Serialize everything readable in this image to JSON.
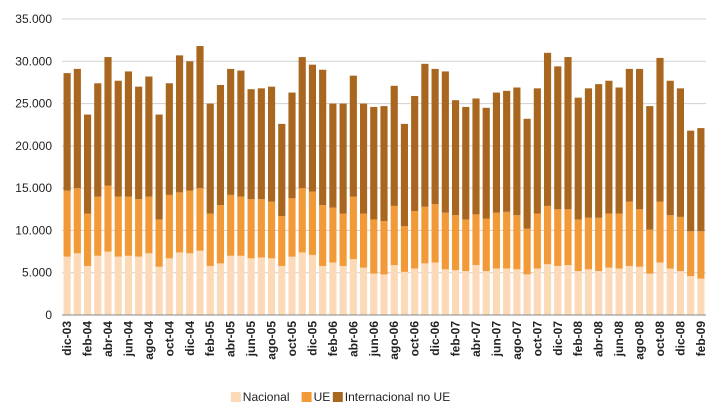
{
  "chart_data": {
    "type": "stacked_bar",
    "categories": [
      "dic-03",
      null,
      "feb-04",
      null,
      "abr-04",
      null,
      "jun-04",
      null,
      "ago-04",
      null,
      "oct-04",
      null,
      "dic-04",
      null,
      "feb-05",
      null,
      "abr-05",
      null,
      "jun-05",
      null,
      "ago-05",
      null,
      "oct-05",
      null,
      "dic-05",
      null,
      "feb-06",
      null,
      "abr-06",
      null,
      "jun-06",
      null,
      "ago-06",
      null,
      "oct-06",
      null,
      "dic-06",
      null,
      "feb-07",
      null,
      "abr-07",
      null,
      "jun-07",
      null,
      "ago-07",
      null,
      "oct-07",
      null,
      "dic-07",
      null,
      "feb-08",
      null,
      "abr-08",
      null,
      "jun-08",
      null,
      "ago-08",
      null,
      "oct-08",
      null,
      "dic-08",
      null,
      "feb-09"
    ],
    "series": [
      {
        "name": "Nacional",
        "color": "#fcdab8",
        "values": [
          6900,
          7300,
          5800,
          7000,
          7500,
          6900,
          7000,
          6900,
          7300,
          5700,
          6700,
          7400,
          7300,
          7600,
          5800,
          6100,
          7000,
          7000,
          6700,
          6800,
          6700,
          5800,
          6900,
          7400,
          7100,
          5800,
          6200,
          5800,
          6600,
          5600,
          4900,
          4800,
          5900,
          5100,
          5500,
          6100,
          6200,
          5400,
          5300,
          5200,
          5900,
          5200,
          5500,
          5500,
          5400,
          4800,
          5500,
          6000,
          5800,
          5900,
          5200,
          5400,
          5200,
          5600,
          5500,
          5800,
          5700,
          4900,
          6200,
          5500,
          5200,
          4600,
          4300
        ]
      },
      {
        "name": "UE",
        "color": "#f29a38",
        "values": [
          7800,
          7700,
          6200,
          7000,
          7800,
          7100,
          7000,
          6800,
          6700,
          5600,
          7500,
          7100,
          7400,
          7400,
          6200,
          6900,
          7200,
          7000,
          7000,
          6900,
          6700,
          5900,
          6900,
          7600,
          7500,
          7200,
          6500,
          6200,
          7400,
          6400,
          6400,
          6300,
          7000,
          5400,
          6800,
          6700,
          6900,
          6700,
          6500,
          6100,
          6000,
          6200,
          6600,
          6700,
          6400,
          5400,
          6500,
          6900,
          6700,
          6600,
          6100,
          6100,
          6300,
          6400,
          6500,
          7600,
          6800,
          5200,
          7200,
          6300,
          6400,
          5300,
          5600
        ]
      },
      {
        "name": "Internacional no UE",
        "color": "#a8661f",
        "values": [
          13900,
          14100,
          11700,
          13400,
          15200,
          13700,
          14800,
          13300,
          14200,
          12400,
          13200,
          16200,
          15300,
          16800,
          13000,
          14200,
          14900,
          14900,
          13000,
          13100,
          13600,
          10900,
          12500,
          15500,
          15000,
          16000,
          12300,
          13000,
          14300,
          13000,
          13300,
          13600,
          14200,
          12100,
          13600,
          16900,
          16000,
          16700,
          13600,
          13300,
          13700,
          13100,
          14200,
          14300,
          15100,
          13000,
          14800,
          18100,
          16900,
          18000,
          14400,
          15300,
          15800,
          15700,
          14900,
          15700,
          16600,
          14600,
          17000,
          15900,
          15200,
          11900,
          12200
        ]
      }
    ],
    "ylim": [
      0,
      35000
    ],
    "yticks": [
      0,
      {
        "value": 5000,
        "label": "5.000"
      },
      {
        "value": 10000,
        "label": "10.000"
      },
      {
        "value": 15000,
        "label": "15.000"
      },
      {
        "value": 20000,
        "label": "20.000"
      },
      {
        "value": 25000,
        "label": "25.000"
      },
      {
        "value": 30000,
        "label": "30.000"
      },
      {
        "value": 35000,
        "label": "35.000"
      }
    ],
    "grid": true,
    "legend": "bottom"
  }
}
